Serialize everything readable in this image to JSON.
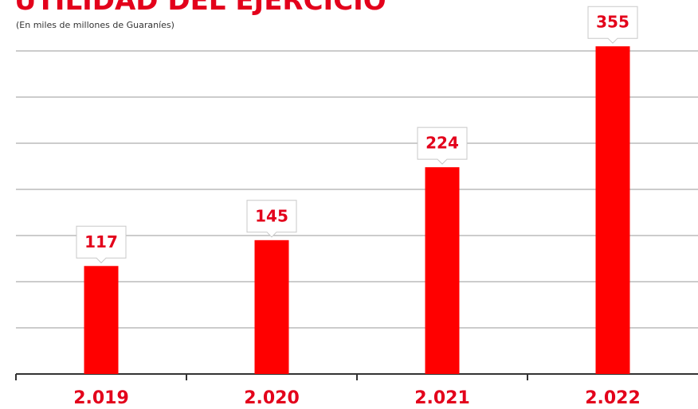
{
  "chart_data": {
    "type": "bar",
    "title": "UTILIDAD DEL EJERCICIO",
    "subtitle": "(En miles de millones de Guaraníes)",
    "categories": [
      "2.019",
      "2.020",
      "2.021",
      "2.022"
    ],
    "values": [
      117,
      145,
      224,
      355
    ],
    "color": "#ff0000",
    "ylim": [
      0,
      400
    ],
    "yticks": [
      0,
      50,
      100,
      150,
      200,
      250,
      300,
      350
    ],
    "grid": true
  }
}
